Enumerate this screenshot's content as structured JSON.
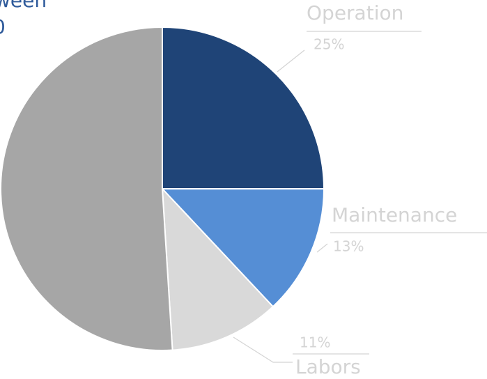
{
  "chart_data": {
    "type": "pie",
    "title_lines": [
      "ween",
      "0"
    ],
    "categories": [
      "Operation",
      "Maintenance",
      "Labors",
      null
    ],
    "values": [
      25,
      13,
      11,
      51
    ],
    "value_labels": [
      "25%",
      "13%",
      "11%",
      null
    ],
    "colors": [
      "#1f4477",
      "#558ed5",
      "#d9d9d9",
      "#a6a6a6"
    ],
    "start_angle": 0,
    "direction": "clockwise"
  }
}
